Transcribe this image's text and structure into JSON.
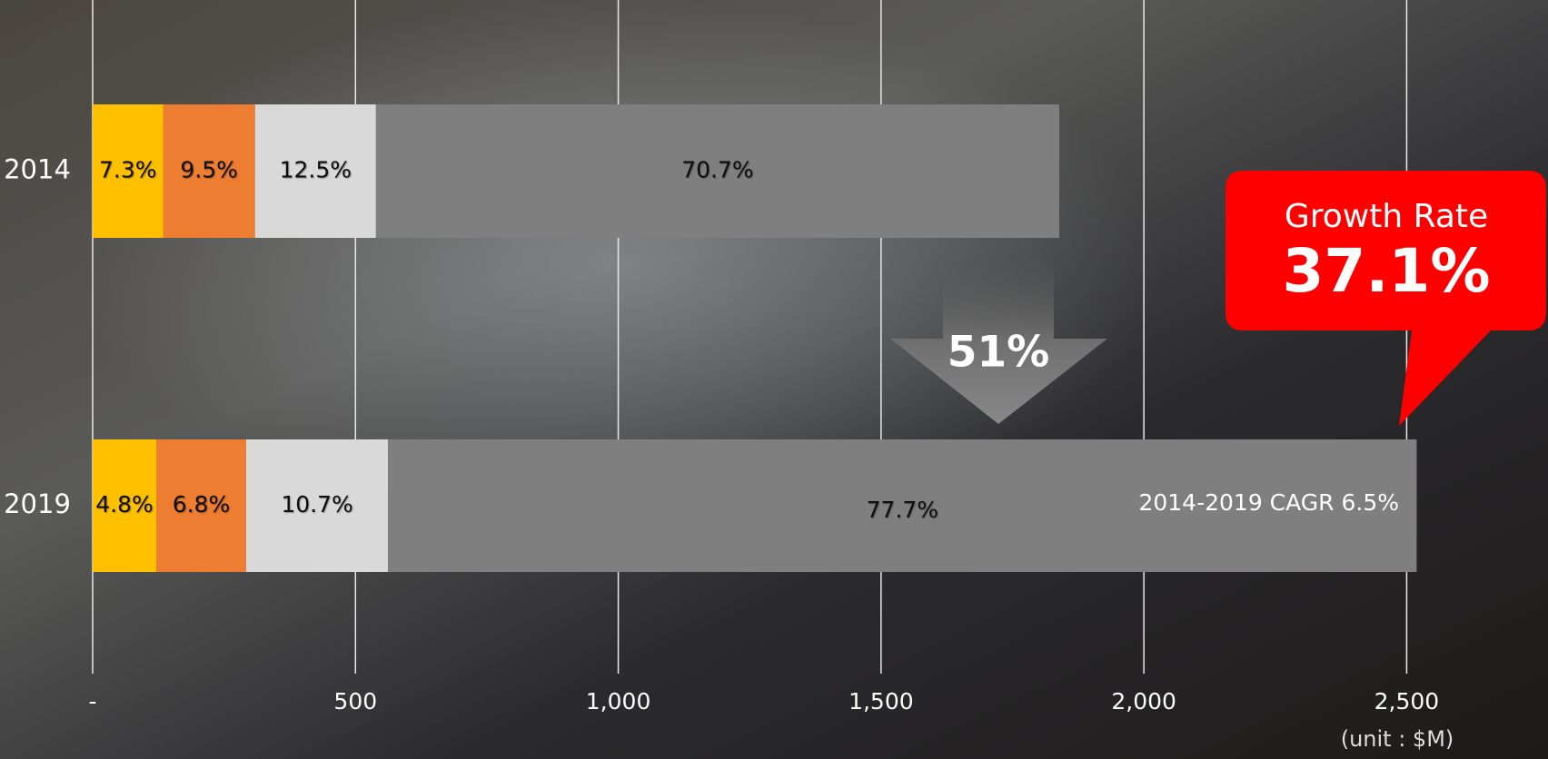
{
  "chart_data": {
    "type": "stacked-bar-horizontal",
    "categories": [
      "2014",
      "2019"
    ],
    "series": [
      {
        "color": "#FFC000",
        "values": [
          134,
          121
        ],
        "value_labels": [
          "7.3%",
          "4.8%"
        ]
      },
      {
        "color": "#ED7D31",
        "values": [
          175,
          171
        ],
        "value_labels": [
          "9.5%",
          "6.8%"
        ]
      },
      {
        "color": "#D9D9D9",
        "values": [
          230,
          270
        ],
        "value_labels": [
          "12.5%",
          "10.7%"
        ]
      },
      {
        "color": "#7F7F7F",
        "values": [
          1300,
          1957
        ],
        "value_labels": [
          "70.7%",
          "77.7%"
        ]
      }
    ],
    "xlim": [
      0,
      2520
    ],
    "xticks": [
      {
        "value": 0,
        "label": "-"
      },
      500,
      {
        "value": 1000,
        "label": "1,000"
      },
      {
        "value": 1500,
        "label": "1,500"
      },
      {
        "value": 2000,
        "label": "2,000"
      },
      {
        "value": 2500,
        "label": "2,500"
      }
    ],
    "grid": true,
    "annotations": {
      "arrow_label": "51%",
      "callout_title": "Growth Rate",
      "callout_value": "37.1%",
      "cagr": "2014-2019 CAGR 6.5%",
      "unit": "(unit : $M)"
    }
  }
}
